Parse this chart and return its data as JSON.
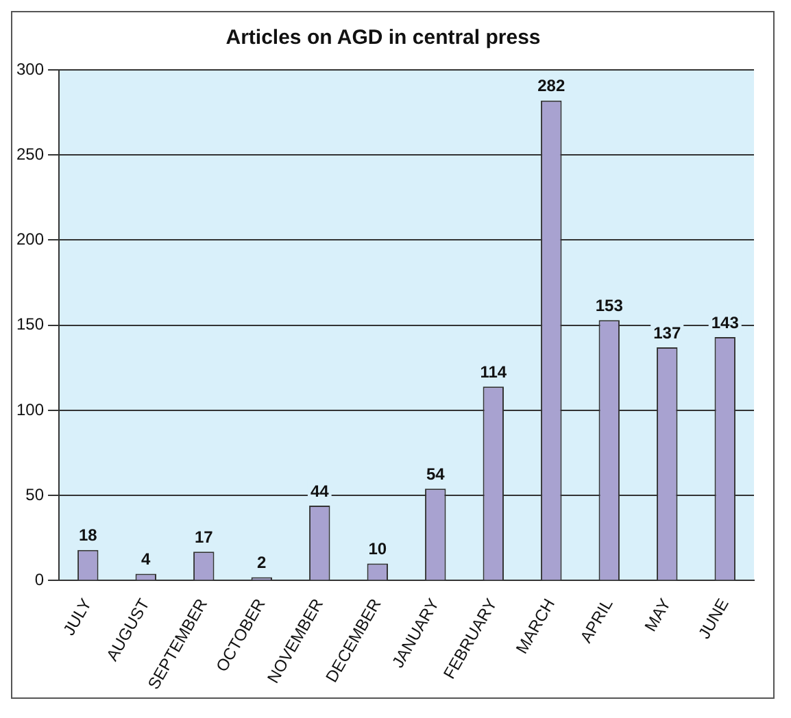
{
  "chart_data": {
    "type": "bar",
    "title": "Articles on AGD in central press",
    "categories": [
      "JULY",
      "AUGUST",
      "SEPTEMBER",
      "OCTOBER",
      "NOVEMBER",
      "DECEMBER",
      "JANUARY",
      "FEBRUARY",
      "MARCH",
      "APRIL",
      "MAY",
      "JUNE"
    ],
    "values": [
      18,
      4,
      17,
      2,
      44,
      10,
      54,
      114,
      282,
      153,
      137,
      143
    ],
    "color": "#a8a2d0",
    "ylim": [
      0,
      300
    ],
    "yticks": [
      0,
      50,
      100,
      150,
      200,
      250,
      300
    ],
    "grid": "y",
    "data_labels": true,
    "legend": false
  }
}
